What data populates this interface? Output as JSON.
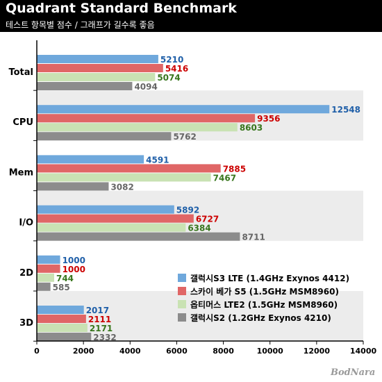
{
  "header": {
    "title": "Quadrant Standard Benchmark",
    "subtitle": "테스트 항목별 점수 / 그래프가 길수록 좋음"
  },
  "watermark": "BodNara",
  "colors": {
    "background": "#ffffff",
    "band": "#ececec",
    "axis": "#000000"
  },
  "chart_data": {
    "type": "bar",
    "orientation": "horizontal",
    "categories": [
      "Total",
      "CPU",
      "Mem",
      "I/O",
      "2D",
      "3D"
    ],
    "series": [
      {
        "name": "갤럭시S3 LTE (1.4GHz Exynos 4412)",
        "color": "#6fa8dc",
        "label_color": "#1f5fa8",
        "values": [
          5210,
          12548,
          4591,
          5892,
          1000,
          2017
        ]
      },
      {
        "name": "스카이 베가 S5 (1.5GHz MSM8960)",
        "color": "#e06666",
        "label_color": "#cc0000",
        "values": [
          5416,
          9356,
          7885,
          6727,
          1000,
          2111
        ]
      },
      {
        "name": "옵티머스 LTE2 (1.5GHz MSM8960)",
        "color": "#c9e2b3",
        "label_color": "#38761d",
        "values": [
          5074,
          8603,
          7467,
          6384,
          744,
          2171
        ]
      },
      {
        "name": "갤럭시S2 (1.2GHz Exynos 4210)",
        "color": "#8c8c8c",
        "label_color": "#666666",
        "values": [
          4094,
          5762,
          3082,
          8711,
          585,
          2332
        ]
      }
    ],
    "xlim": [
      0,
      14000
    ],
    "xticks": [
      0,
      2000,
      4000,
      6000,
      8000,
      10000,
      12000,
      14000
    ],
    "legend_position": "lower-right",
    "grid": false
  }
}
